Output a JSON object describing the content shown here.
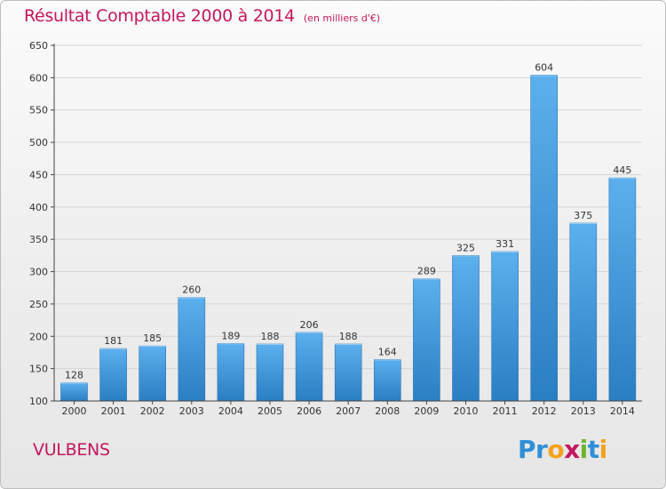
{
  "title": {
    "main": "Résultat Comptable 2000 à 2014",
    "subtitle": "(en milliers d'€)"
  },
  "footer": {
    "location": "VULBENS"
  },
  "logo": {
    "text": "Proxiti",
    "letters": [
      {
        "ch": "P",
        "color": "#2f8fd6"
      },
      {
        "ch": "r",
        "color": "#2f8fd6"
      },
      {
        "ch": "o",
        "color": "#f4a21d"
      },
      {
        "ch": "x",
        "color": "#c3175e"
      },
      {
        "ch": "i",
        "color": "#6fb52c"
      },
      {
        "ch": "t",
        "color": "#2f8fd6"
      },
      {
        "ch": "i",
        "color": "#f4a21d"
      }
    ]
  },
  "colors": {
    "title": "#c3175e",
    "bar_top": "#5cb0ee",
    "bar_bottom": "#2a7ec2",
    "axis": "#444444",
    "grid": "#d4d4d4"
  },
  "chart_data": {
    "type": "bar",
    "categories": [
      "2000",
      "2001",
      "2002",
      "2003",
      "2004",
      "2005",
      "2006",
      "2007",
      "2008",
      "2009",
      "2010",
      "2011",
      "2012",
      "2013",
      "2014"
    ],
    "values": [
      128,
      181,
      185,
      260,
      189,
      188,
      206,
      188,
      164,
      289,
      325,
      331,
      604,
      375,
      445
    ],
    "ylim": [
      100,
      650
    ],
    "yticks": [
      100,
      150,
      200,
      250,
      300,
      350,
      400,
      450,
      500,
      550,
      600,
      650
    ],
    "grid": true,
    "data_labels": true
  }
}
